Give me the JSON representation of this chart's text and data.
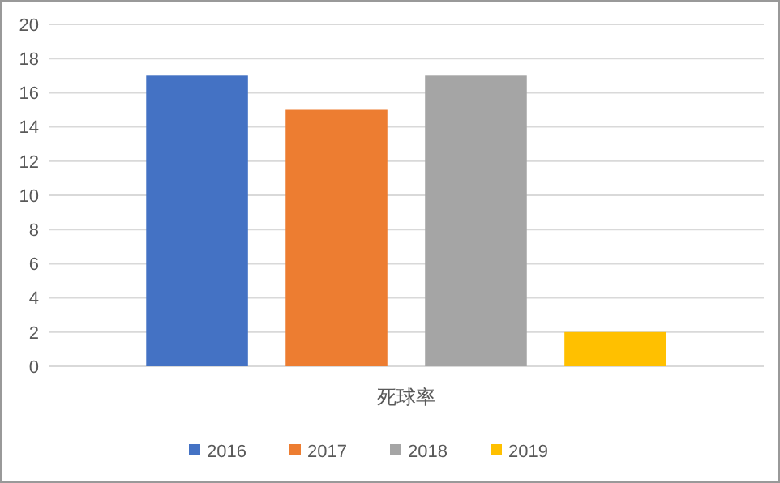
{
  "chart_data": {
    "type": "bar",
    "categories": [
      "死球率"
    ],
    "series": [
      {
        "name": "2016",
        "color": "#4472c4",
        "values": [
          17
        ]
      },
      {
        "name": "2017",
        "color": "#ed7d31",
        "values": [
          15
        ]
      },
      {
        "name": "2018",
        "color": "#a5a5a5",
        "values": [
          17
        ]
      },
      {
        "name": "2019",
        "color": "#ffc000",
        "values": [
          2
        ]
      }
    ],
    "ylim": [
      0,
      20
    ],
    "yticks": [
      0,
      2,
      4,
      6,
      8,
      10,
      12,
      14,
      16,
      18,
      20
    ],
    "grid": "y",
    "legend": "bottom"
  }
}
